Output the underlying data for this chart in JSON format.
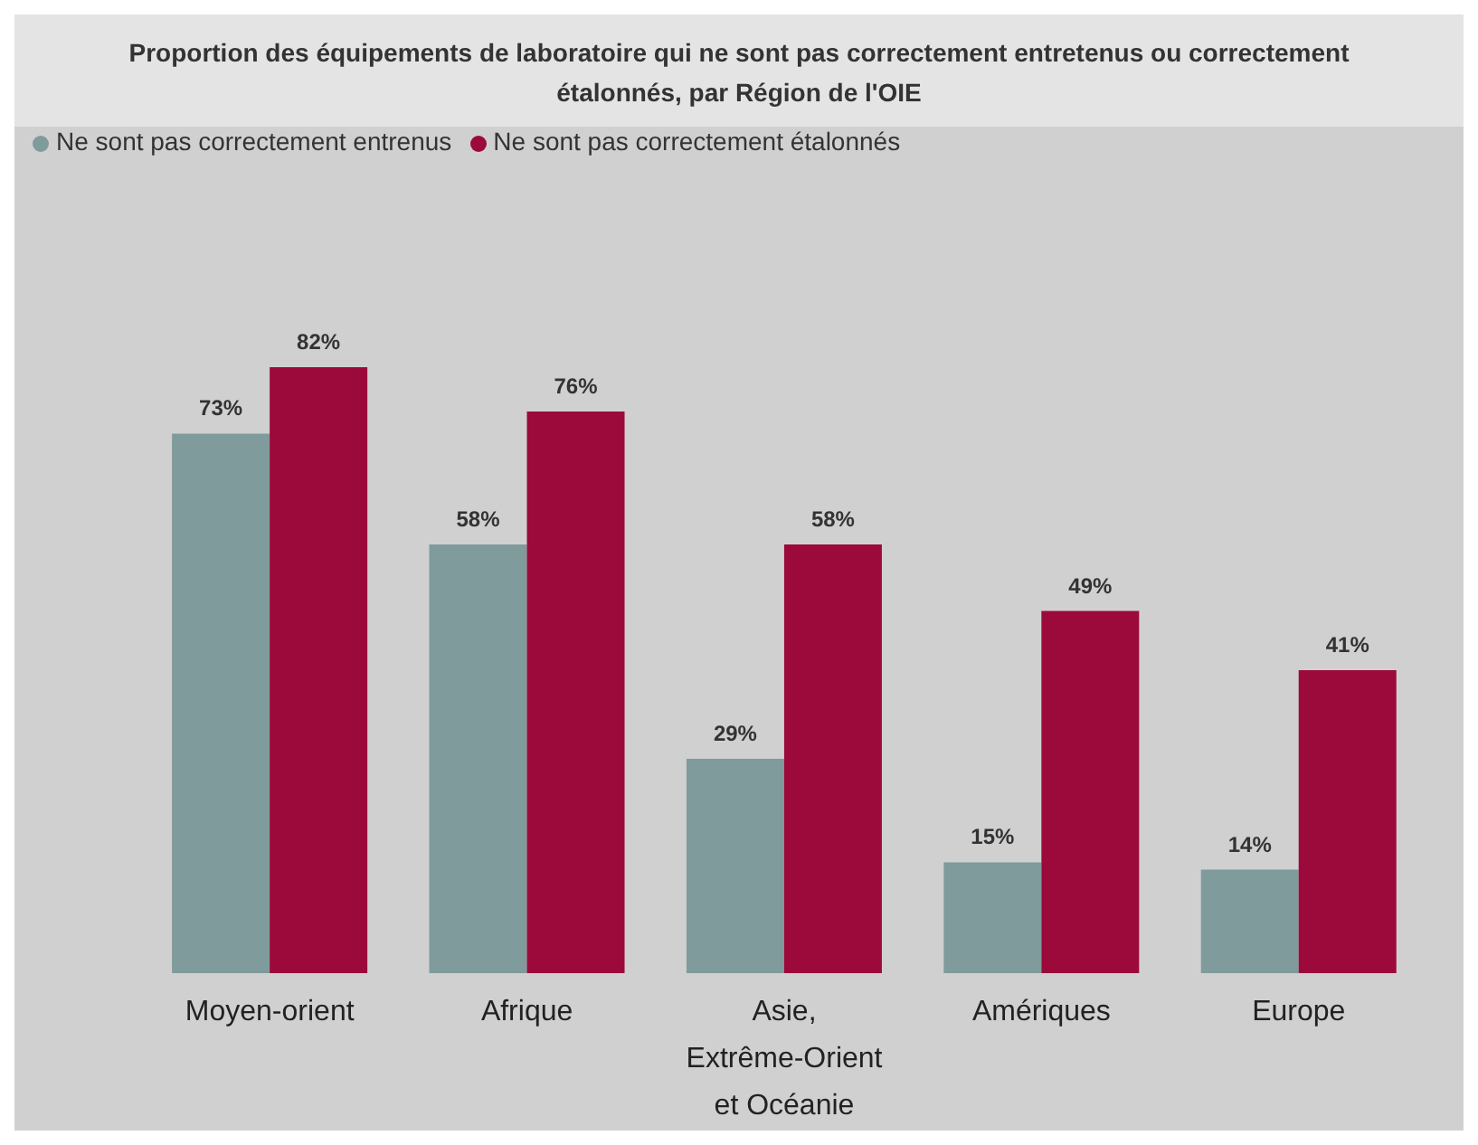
{
  "chart_data": {
    "type": "bar",
    "title": "Proportion des équipements de laboratoire qui ne sont pas correctement entretenus ou correctement étalonnés, par Région de l'OIE",
    "categories": [
      "Moyen-orient",
      "Afrique",
      "Asie, Extrême-Orient et Océanie",
      "Amériques",
      "Europe"
    ],
    "series": [
      {
        "name": "Ne sont pas correctement entrenus",
        "color": "#7f9b9b",
        "values": [
          73,
          58,
          29,
          15,
          14
        ],
        "value_labels": [
          "73%",
          "58%",
          "29%",
          "15%",
          "14%"
        ]
      },
      {
        "name": "Ne sont pas correctement étalonnés",
        "color": "#9b0a3a",
        "values": [
          82,
          76,
          58,
          49,
          41
        ],
        "value_labels": [
          "82%",
          "76%",
          "58%",
          "49%",
          "41%"
        ]
      }
    ],
    "legend": "top left"
  }
}
